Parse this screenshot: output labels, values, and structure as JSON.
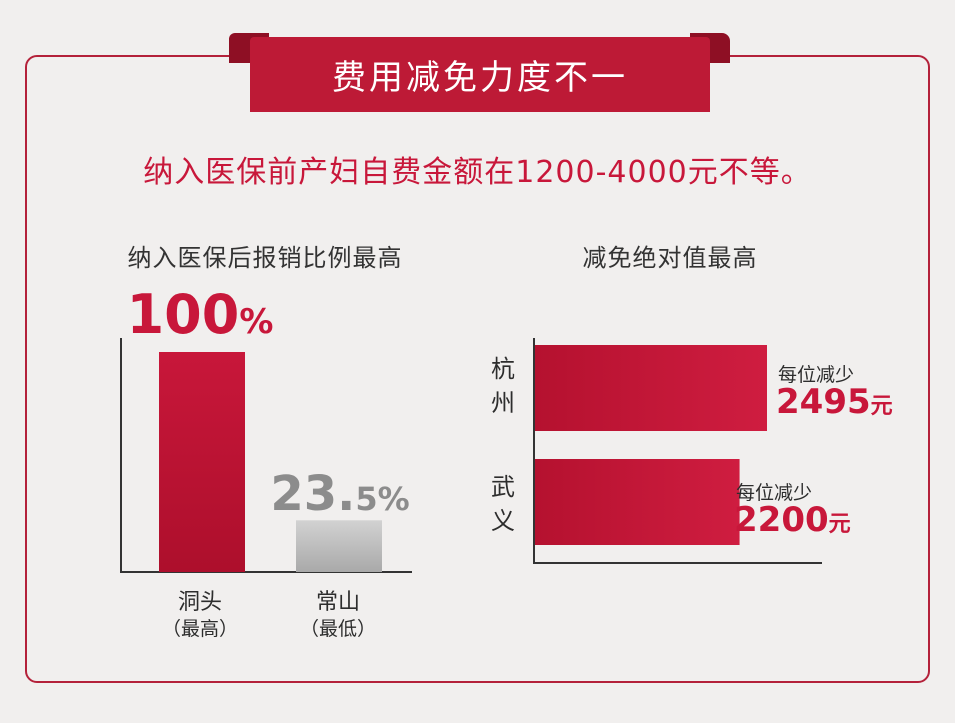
{
  "header": {
    "title": "费用减免力度不一",
    "subtitle": "纳入医保前产妇自费金额在1200-4000元不等。"
  },
  "colors": {
    "accent": "#c8173a",
    "gray_bar": "#bdbdbd"
  },
  "chart_data": [
    {
      "type": "bar",
      "title": "纳入医保后报销比例最高",
      "categories": [
        "洞头",
        "常山"
      ],
      "sublabels": [
        "（最高）",
        "（最低）"
      ],
      "values": [
        100,
        23.5
      ],
      "value_labels": {
        "main": [
          "100",
          "23."
        ],
        "suffix": [
          "%",
          "5%"
        ]
      },
      "ylim": [
        0,
        100
      ],
      "unit": "%"
    },
    {
      "type": "bar",
      "orientation": "horizontal",
      "title": "减免绝对值最高",
      "categories": [
        "杭州",
        "武义"
      ],
      "values": [
        2495,
        2200
      ],
      "unit": "元",
      "annotation": "每位减少",
      "xlim": [
        0,
        2495
      ]
    }
  ]
}
